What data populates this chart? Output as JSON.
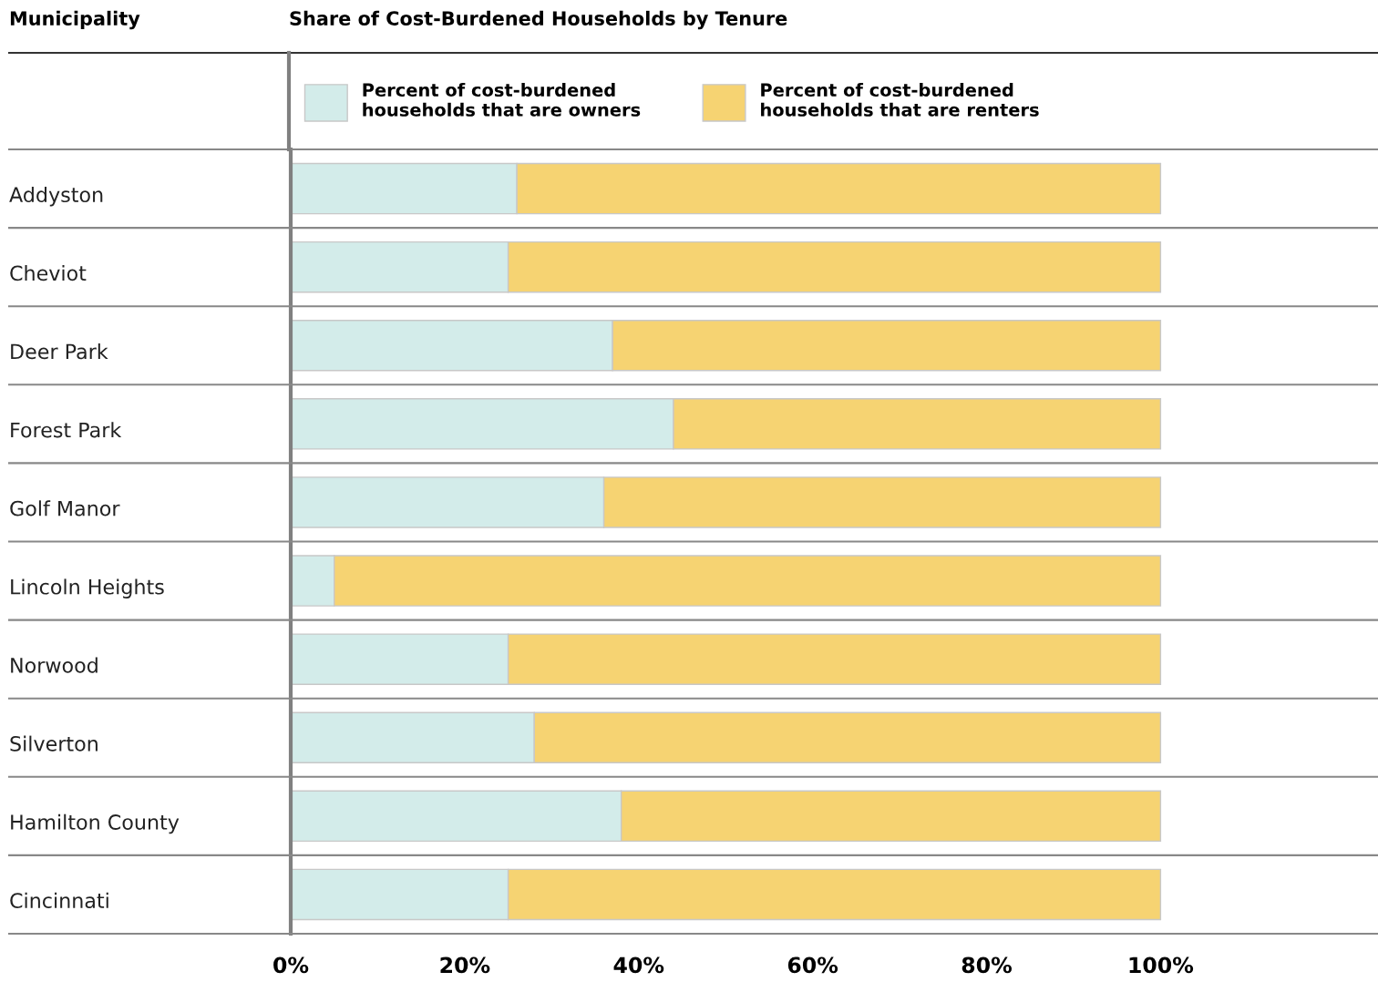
{
  "chart_data": {
    "type": "bar",
    "orientation": "horizontal",
    "stacked": true,
    "title": "Share of Cost-Burdened Households by Tenure",
    "annotations": [
      "Municipality"
    ],
    "categories": [
      "Addyston",
      "Cheviot",
      "Deer Park",
      "Forest Park",
      "Golf Manor",
      "Lincoln Heights",
      "Norwood",
      "Silverton",
      "Hamilton County",
      "Cincinnati"
    ],
    "series": [
      {
        "name": "Percent of cost-burdened households that are owners",
        "color": "#d3ecea",
        "values": [
          26,
          25,
          37,
          44,
          36,
          5,
          25,
          28,
          38,
          25
        ]
      },
      {
        "name": "Percent of cost-burdened households that are renters",
        "color": "#f6d372",
        "values": [
          74,
          75,
          63,
          56,
          64,
          95,
          75,
          72,
          62,
          75
        ]
      }
    ],
    "xlim": [
      0,
      125
    ],
    "xticks": [
      {
        "value": 0,
        "label": "0%"
      },
      {
        "value": 20,
        "label": "20%"
      },
      {
        "value": 40,
        "label": "40%"
      },
      {
        "value": 60,
        "label": "60%"
      },
      {
        "value": 80,
        "label": "80%"
      },
      {
        "value": 100,
        "label": "100%"
      }
    ],
    "tick_labels": "x",
    "grid": false,
    "legend": "top"
  }
}
